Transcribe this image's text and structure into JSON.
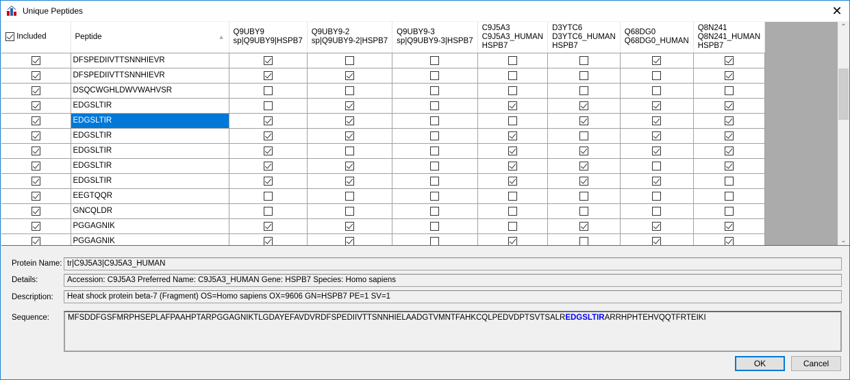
{
  "window": {
    "title": "Unique Peptides"
  },
  "grid": {
    "columns": [
      {
        "label": "Included"
      },
      {
        "label": "Peptide",
        "sort": "ascending"
      },
      {
        "label": "Q9UBY9\nsp|Q9UBY9|HSPB7"
      },
      {
        "label": "Q9UBY9-2\nsp|Q9UBY9-2|HSPB7"
      },
      {
        "label": "Q9UBY9-3\nsp|Q9UBY9-3|HSPB7"
      },
      {
        "label": "C9J5A3\nC9J5A3_HUMAN\nHSPB7"
      },
      {
        "label": "D3YTC6\nD3YTC6_HUMAN\nHSPB7"
      },
      {
        "label": "Q68DG0\nQ68DG0_HUMAN"
      },
      {
        "label": "Q8N241\nQ8N241_HUMAN\nHSPB7"
      }
    ],
    "header_checked": true,
    "selected_row": 4,
    "rows": [
      {
        "included": true,
        "peptide": "DFSPEDIIVTTSNNHIEVR",
        "proteins": [
          1,
          0,
          0,
          0,
          0,
          1,
          1
        ]
      },
      {
        "included": true,
        "peptide": "DFSPEDIIVTTSNNHIEVR",
        "proteins": [
          1,
          1,
          0,
          0,
          0,
          0,
          1
        ]
      },
      {
        "included": true,
        "peptide": "DSQCWGHLDWVWAHVSR",
        "proteins": [
          0,
          0,
          0,
          0,
          0,
          0,
          0
        ]
      },
      {
        "included": true,
        "peptide": "EDGSLTIR",
        "proteins": [
          0,
          1,
          0,
          1,
          1,
          1,
          1
        ]
      },
      {
        "included": true,
        "peptide": "EDGSLTIR",
        "proteins": [
          1,
          1,
          0,
          0,
          1,
          1,
          1
        ]
      },
      {
        "included": true,
        "peptide": "EDGSLTIR",
        "proteins": [
          1,
          1,
          0,
          1,
          0,
          1,
          1
        ]
      },
      {
        "included": true,
        "peptide": "EDGSLTIR",
        "proteins": [
          1,
          0,
          0,
          1,
          1,
          1,
          1
        ]
      },
      {
        "included": true,
        "peptide": "EDGSLTIR",
        "proteins": [
          1,
          1,
          0,
          1,
          1,
          0,
          1
        ]
      },
      {
        "included": true,
        "peptide": "EDGSLTIR",
        "proteins": [
          1,
          1,
          0,
          1,
          1,
          1,
          0
        ]
      },
      {
        "included": true,
        "peptide": "EEGTQQR",
        "proteins": [
          0,
          0,
          0,
          0,
          0,
          0,
          0
        ]
      },
      {
        "included": true,
        "peptide": "GNCQLDR",
        "proteins": [
          0,
          0,
          0,
          0,
          0,
          0,
          0
        ]
      },
      {
        "included": true,
        "peptide": "PGGAGNIK",
        "proteins": [
          1,
          1,
          0,
          0,
          1,
          1,
          1
        ]
      },
      {
        "included": true,
        "peptide": "PGGAGNIK",
        "proteins": [
          1,
          1,
          0,
          1,
          0,
          1,
          1
        ]
      }
    ]
  },
  "details": {
    "protein_name_label": "Protein Name:",
    "protein_name": "tr|C9J5A3|C9J5A3_HUMAN",
    "details_label": "Details:",
    "details": "Accession: C9J5A3 Preferred Name: C9J5A3_HUMAN Gene: HSPB7 Species: Homo sapiens",
    "description_label": "Description:",
    "description": "Heat shock protein beta-7 (Fragment) OS=Homo sapiens OX=9606 GN=HSPB7 PE=1 SV=1",
    "sequence_label": "Sequence:",
    "sequence_before": "MFSDDFGSFMRPHSEPLAFPAAHPTARPGGAGNIKTLGDAYEFAVDVRDFSPEDIIVTTSNNHIELAADGTVMNTFAHKCQLPEDVDPTSVTSALR",
    "sequence_highlight": "EDGSLTIR",
    "sequence_after": "ARRHPHTEHVQQTFRTEIKI",
    "highlight_color": "#0000ff"
  },
  "buttons": {
    "ok": "OK",
    "cancel": "Cancel"
  },
  "colors": {
    "selection": "#0078d7",
    "accent": "#1883d7"
  }
}
